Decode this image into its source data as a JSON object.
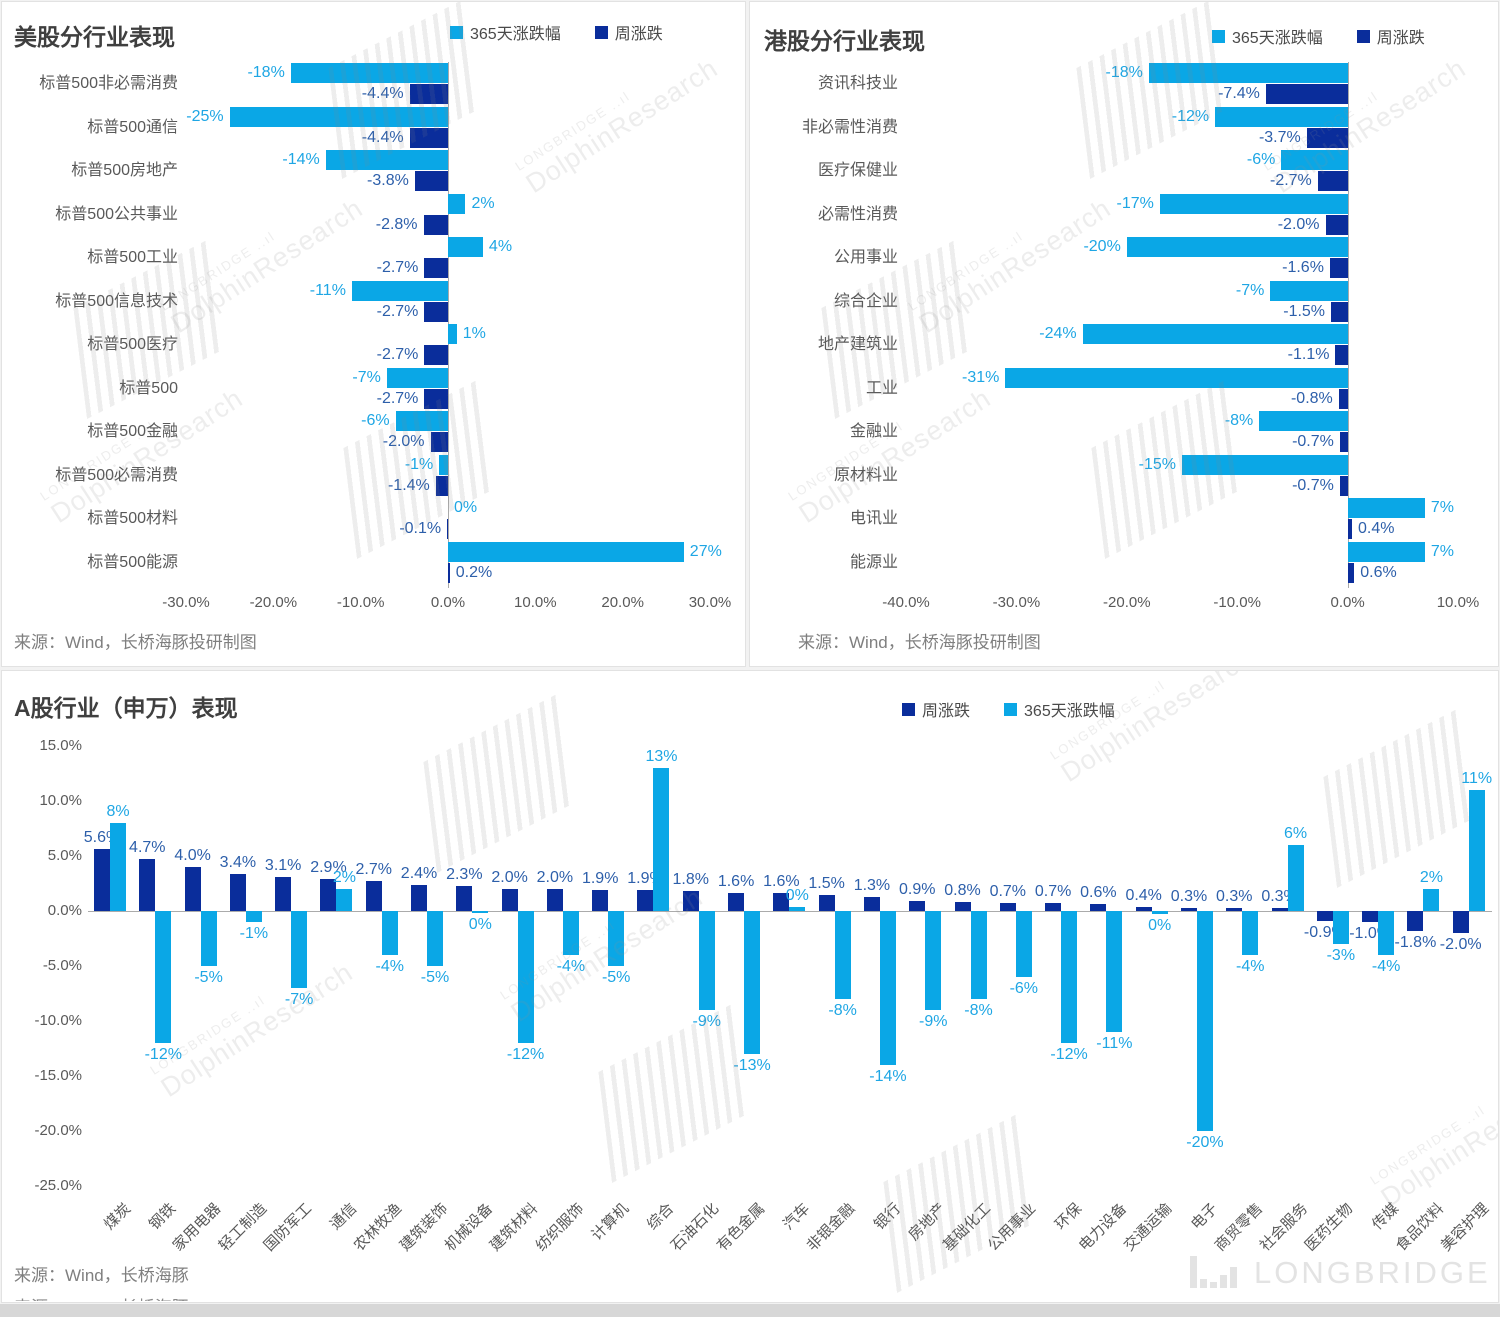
{
  "colors": {
    "year_bar": "#0aa7e6",
    "week_bar": "#0a2d9b",
    "year_label": "#1ea6e4",
    "week_label": "#2d5faa",
    "title": "#3f3f3f",
    "axis_text": "#595959",
    "source_text": "#7f7f7f"
  },
  "watermark": {
    "brand_small": "LONGBRIDGE",
    "brand_large": "DolphinResearch"
  },
  "footer_logo": "LONGBRIDGE",
  "chart_data": [
    {
      "id": "us",
      "type": "bar",
      "orientation": "horizontal",
      "title": "美股分行业表现",
      "legend": [
        {
          "label": "365天涨跌幅",
          "key": "year"
        },
        {
          "label": "周涨跌",
          "key": "week"
        }
      ],
      "legend_position": "top-right",
      "grid": false,
      "categories": [
        "标普500非必需消费",
        "标普500通信",
        "标普500房地产",
        "标普500公共事业",
        "标普500工业",
        "标普500信息技术",
        "标普500医疗",
        "标普500",
        "标普500金融",
        "标普500必需消费",
        "标普500材料",
        "标普500能源"
      ],
      "series": [
        {
          "name": "365天涨跌幅",
          "key": "year",
          "values": [
            -18,
            -25,
            -14,
            2,
            4,
            -11,
            1,
            -7,
            -6,
            -1,
            0,
            27
          ],
          "labels": [
            "-18%",
            "-25%",
            "-14%",
            "2%",
            "4%",
            "-11%",
            "1%",
            "-7%",
            "-6%",
            "-1%",
            "0%",
            "27%"
          ]
        },
        {
          "name": "周涨跌",
          "key": "week",
          "values": [
            -4.4,
            -4.4,
            -3.8,
            -2.8,
            -2.7,
            -2.7,
            -2.7,
            -2.7,
            -2.0,
            -1.4,
            -0.1,
            0.2
          ],
          "labels": [
            "-4.4%",
            "-4.4%",
            "-3.8%",
            "-2.8%",
            "-2.7%",
            "-2.7%",
            "-2.7%",
            "-2.7%",
            "-2.0%",
            "-1.4%",
            "-0.1%",
            "0.2%"
          ]
        }
      ],
      "xlim": [
        -30,
        30
      ],
      "xtick_values": [
        -30,
        -20,
        -10,
        0,
        10,
        20,
        30
      ],
      "xtick_labels": [
        "-30.0%",
        "-20.0%",
        "-10.0%",
        "0.0%",
        "10.0%",
        "20.0%",
        "30.0%"
      ],
      "source": "来源：Wind，长桥海豚投研制图"
    },
    {
      "id": "hk",
      "type": "bar",
      "orientation": "horizontal",
      "title": "港股分行业表现",
      "legend": [
        {
          "label": "365天涨跌幅",
          "key": "year"
        },
        {
          "label": "周涨跌",
          "key": "week"
        }
      ],
      "legend_position": "top-right",
      "grid": false,
      "categories": [
        "资讯科技业",
        "非必需性消费",
        "医疗保健业",
        "必需性消费",
        "公用事业",
        "综合企业",
        "地产建筑业",
        "工业",
        "金融业",
        "原材料业",
        "电讯业",
        "能源业"
      ],
      "series": [
        {
          "name": "365天涨跌幅",
          "key": "year",
          "values": [
            -18,
            -12,
            -6,
            -17,
            -20,
            -7,
            -24,
            -31,
            -8,
            -15,
            7,
            7
          ],
          "labels": [
            "-18%",
            "-12%",
            "-6%",
            "-17%",
            "-20%",
            "-7%",
            "-24%",
            "-31%",
            "-8%",
            "-15%",
            "7%",
            "7%"
          ]
        },
        {
          "name": "周涨跌",
          "key": "week",
          "values": [
            -7.4,
            -3.7,
            -2.7,
            -2.0,
            -1.6,
            -1.5,
            -1.1,
            -0.8,
            -0.7,
            -0.7,
            0.4,
            0.6
          ],
          "labels": [
            "-7.4%",
            "-3.7%",
            "-2.7%",
            "-2.0%",
            "-1.6%",
            "-1.5%",
            "-1.1%",
            "-0.8%",
            "-0.7%",
            "-0.7%",
            "0.4%",
            "0.6%"
          ]
        }
      ],
      "xlim": [
        -40,
        10
      ],
      "xtick_values": [
        -40,
        -30,
        -20,
        -10,
        0,
        10
      ],
      "xtick_labels": [
        "-40.0%",
        "-30.0%",
        "-20.0%",
        "-10.0%",
        "0.0%",
        "10.0%"
      ],
      "source": "来源：Wind，长桥海豚投研制图"
    },
    {
      "id": "a",
      "type": "bar",
      "orientation": "vertical",
      "title": "A股行业（申万）表现",
      "legend": [
        {
          "label": "周涨跌",
          "key": "week"
        },
        {
          "label": "365天涨跌幅",
          "key": "year"
        }
      ],
      "legend_position": "top-center",
      "grid": false,
      "categories": [
        "煤炭",
        "钢铁",
        "家用电器",
        "轻工制造",
        "国防军工",
        "通信",
        "农林牧渔",
        "建筑装饰",
        "机械设备",
        "建筑材料",
        "纺织服饰",
        "计算机",
        "综合",
        "石油石化",
        "有色金属",
        "汽车",
        "非银金融",
        "银行",
        "房地产",
        "基础化工",
        "公用事业",
        "环保",
        "电力设备",
        "交通运输",
        "电子",
        "商贸零售",
        "社会服务",
        "医药生物",
        "传媒",
        "食品饮料",
        "美容护理"
      ],
      "series": [
        {
          "name": "周涨跌",
          "key": "week",
          "values": [
            5.6,
            4.7,
            4.0,
            3.4,
            3.1,
            2.9,
            2.7,
            2.4,
            2.3,
            2.0,
            2.0,
            1.9,
            1.9,
            1.8,
            1.6,
            1.6,
            1.5,
            1.3,
            0.9,
            0.8,
            0.7,
            0.7,
            0.6,
            0.4,
            0.3,
            0.3,
            0.3,
            -0.9,
            -1.0,
            -1.8,
            -2.0
          ],
          "labels": [
            "5.6%",
            "4.7%",
            "4.0%",
            "3.4%",
            "3.1%",
            "2.9%",
            "2.7%",
            "2.4%",
            "2.3%",
            "2.0%",
            "2.0%",
            "1.9%",
            "1.9%",
            "1.8%",
            "1.6%",
            "1.6%",
            "1.5%",
            "1.3%",
            "0.9%",
            "0.8%",
            "0.7%",
            "0.7%",
            "0.6%",
            "0.4%",
            "0.3%",
            "0.3%",
            "0.3%",
            "-0.9%",
            "-1.0%",
            "-1.8%",
            "-2.0%"
          ]
        },
        {
          "name": "365天涨跌幅",
          "key": "year",
          "values": [
            8,
            -12,
            -5,
            -1,
            -7,
            2,
            -4,
            -5,
            -0.2,
            -12,
            -4,
            -5,
            13,
            -9,
            -13,
            0.4,
            -8,
            -14,
            -9,
            -8,
            -6,
            -12,
            -11,
            -0.3,
            -20,
            -4,
            6,
            -3,
            -4,
            2,
            11
          ],
          "labels": [
            "8%",
            "-12%",
            "-5%",
            "-1%",
            "-7%",
            "2%",
            "-4%",
            "-5%",
            "0%",
            "-12%",
            "-4%",
            "-5%",
            "13%",
            "-9%",
            "-13%",
            "0%",
            "-8%",
            "-14%",
            "-9%",
            "-8%",
            "-6%",
            "-12%",
            "-11%",
            "0%",
            "-20%",
            "-4%",
            "6%",
            "-3%",
            "-4%",
            "2%",
            "11%"
          ]
        }
      ],
      "ylim": [
        -25,
        15
      ],
      "ytick_values": [
        15,
        10,
        5,
        0,
        -5,
        -10,
        -15,
        -20,
        -25
      ],
      "ytick_labels": [
        "15.0%",
        "10.0%",
        "5.0%",
        "0.0%",
        "-5.0%",
        "-10.0%",
        "-15.0%",
        "-20.0%",
        "-25.0%"
      ],
      "source": "来源：Wind，长桥海豚"
    }
  ]
}
